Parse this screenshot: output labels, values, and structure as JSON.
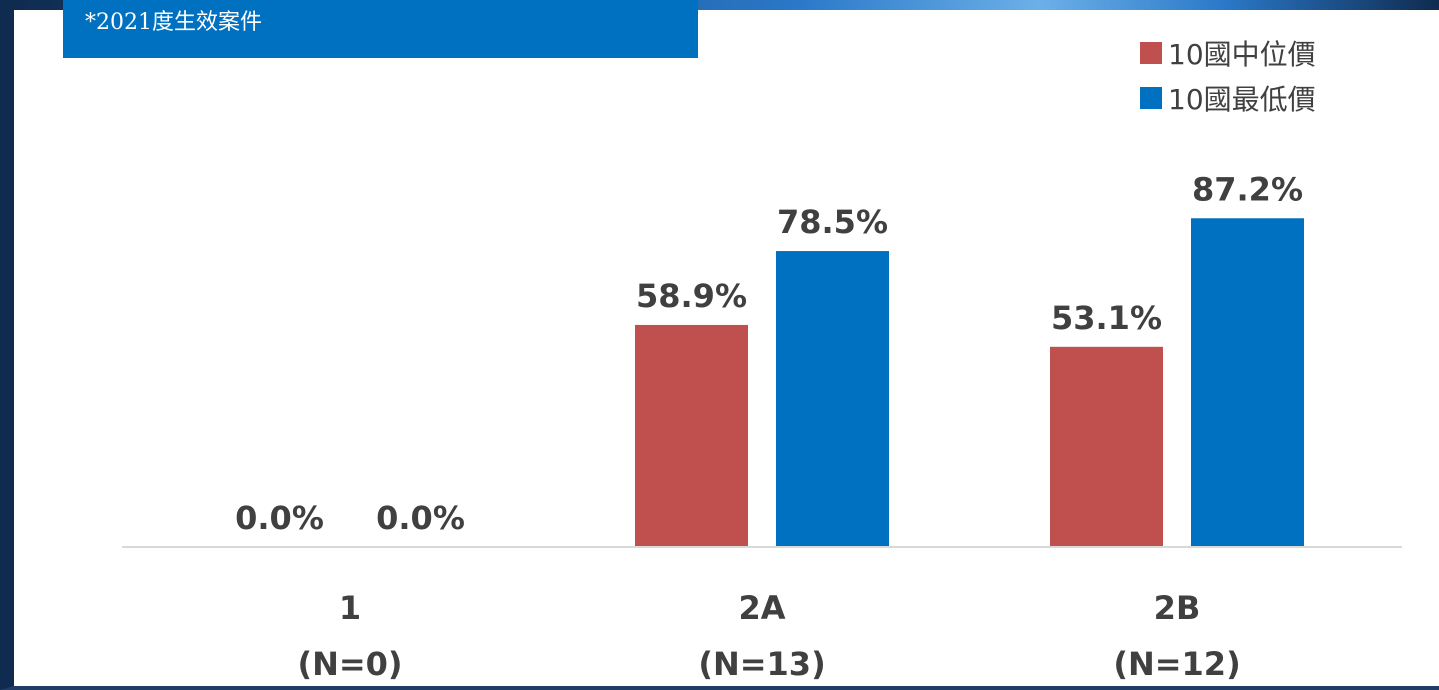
{
  "note": "*2021度生效案件",
  "chart_data": {
    "type": "bar",
    "title": "",
    "xlabel": "",
    "ylabel": "",
    "categories": [
      "1",
      "2A",
      "2B"
    ],
    "category_sublabels": [
      "(N=0)",
      "(N=13)",
      "(N=12)"
    ],
    "series": [
      {
        "name": "10國中位價",
        "color": "#c0504d",
        "values": [
          0.0,
          58.9,
          53.1
        ],
        "labels": [
          "0.0%",
          "58.9%",
          "53.1%"
        ]
      },
      {
        "name": "10國最低價",
        "color": "#0070c0",
        "values": [
          0.0,
          78.5,
          87.2
        ],
        "labels": [
          "0.0%",
          "78.5%",
          "87.2%"
        ]
      }
    ],
    "ylim": [
      0,
      100
    ],
    "legend_position": "top-right",
    "grid": false
  }
}
